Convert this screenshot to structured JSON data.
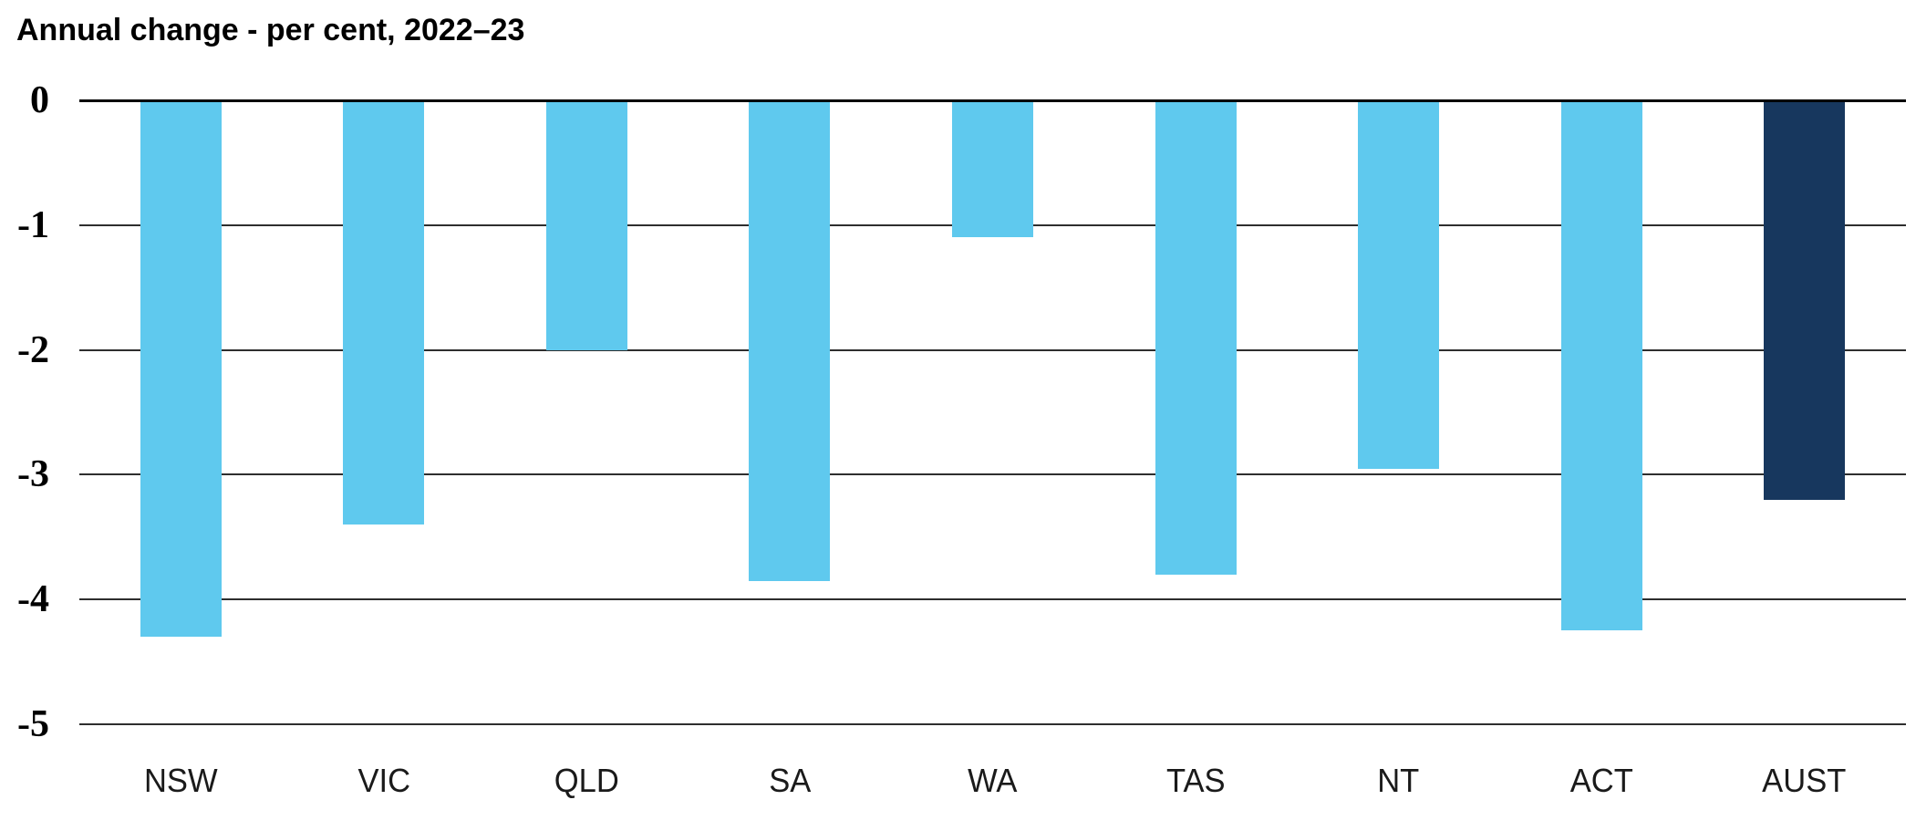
{
  "title": "Annual change - per cent, 2022–23",
  "colors": {
    "background": "#ffffff",
    "bar_default": "#5FC9EE",
    "bar_highlight": "#17375E",
    "gridline": "#2e2e2e",
    "zero_axis": "#000000",
    "text": "#000000"
  },
  "chart_data": {
    "type": "bar",
    "title": "Annual change - per cent, 2022–23",
    "categories": [
      "NSW",
      "VIC",
      "QLD",
      "SA",
      "WA",
      "TAS",
      "NT",
      "ACT",
      "AUST"
    ],
    "values": [
      -4.3,
      -3.4,
      -2.0,
      -3.85,
      -1.1,
      -3.8,
      -2.95,
      -4.25,
      -3.2
    ],
    "series_name": "Annual change per cent 2022-23",
    "highlight_category": "AUST",
    "xlabel": "",
    "ylabel": "",
    "ylim": [
      -5,
      0
    ],
    "yticks": [
      0,
      -1,
      -2,
      -3,
      -4,
      -5
    ],
    "ytick_labels": [
      "0",
      "-1",
      "-2",
      "-3",
      "-4",
      "-5"
    ],
    "grid": true,
    "legend": "none",
    "bar_color_default": "#5FC9EE",
    "bar_color_highlight": "#17375E"
  }
}
